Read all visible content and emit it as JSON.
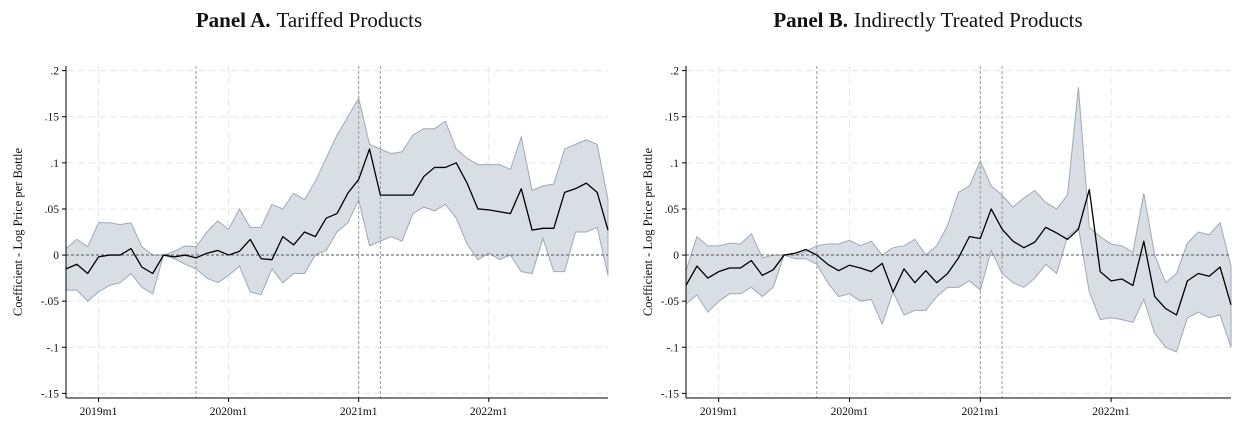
{
  "colors": {
    "band_fill": "#d9dde4",
    "band_edge": "#9eaab8",
    "line": "#000000",
    "grid": "#e8e8e8",
    "zero": "#555555",
    "vline": "#9a9a9a"
  },
  "chart_data": [
    {
      "type": "line",
      "panel_label": "Panel A.",
      "title": "Tariffed Products",
      "ylabel": "Coefficient - Log Price per Bottle",
      "xlabel": "",
      "y_ticks": [
        0.2,
        0.15,
        0.1,
        0.05,
        0,
        -0.05,
        -0.1,
        -0.15
      ],
      "y_tick_labels": [
        ".2",
        ".15",
        ".1",
        ".05",
        "0",
        "-.05",
        "-.1",
        "-.15"
      ],
      "ylim": [
        -0.155,
        0.205
      ],
      "x_ticks": [
        "2019-01",
        "2020-01",
        "2021-01",
        "2022-01"
      ],
      "x_tick_labels": [
        "2019m1",
        "2020m1",
        "2021m1",
        "2022m1"
      ],
      "xlim": [
        "2018-10",
        "2022-12"
      ],
      "reference_lines": [
        "2019-10",
        "2021-01",
        "2021-03"
      ],
      "grid": true,
      "series": [
        {
          "type": "confidence-band",
          "x": [
            "2018-10",
            "2018-11",
            "2018-12",
            "2019-01",
            "2019-02",
            "2019-03",
            "2019-04",
            "2019-05",
            "2019-06",
            "2019-07",
            "2019-08",
            "2019-09",
            "2019-10",
            "2019-11",
            "2019-12",
            "2020-01",
            "2020-02",
            "2020-03",
            "2020-04",
            "2020-05",
            "2020-06",
            "2020-07",
            "2020-08",
            "2020-09",
            "2020-10",
            "2020-11",
            "2020-12",
            "2021-01",
            "2021-02",
            "2021-03",
            "2021-04",
            "2021-05",
            "2021-06",
            "2021-07",
            "2021-08",
            "2021-09",
            "2021-10",
            "2021-11",
            "2021-12",
            "2022-01",
            "2022-02",
            "2022-03",
            "2022-04",
            "2022-05",
            "2022-06",
            "2022-07",
            "2022-08",
            "2022-09",
            "2022-10",
            "2022-11",
            "2022-12"
          ],
          "lower": [
            -0.038,
            -0.038,
            -0.05,
            -0.04,
            -0.033,
            -0.03,
            -0.02,
            -0.035,
            -0.042,
            0.0,
            -0.004,
            -0.01,
            -0.015,
            -0.025,
            -0.03,
            -0.022,
            -0.012,
            -0.04,
            -0.043,
            -0.015,
            -0.03,
            -0.02,
            -0.02,
            0.0,
            0.005,
            0.025,
            0.035,
            0.06,
            0.01,
            0.015,
            0.02,
            0.015,
            0.045,
            0.052,
            0.048,
            0.055,
            0.04,
            0.012,
            -0.005,
            0.002,
            -0.005,
            0.0,
            -0.018,
            -0.02,
            0.018,
            -0.018,
            -0.018,
            0.025,
            0.025,
            0.03,
            -0.022
          ],
          "upper": [
            0.007,
            0.017,
            0.009,
            0.035,
            0.035,
            0.033,
            0.035,
            0.009,
            0.0,
            0.0,
            0.004,
            0.01,
            0.009,
            0.025,
            0.037,
            0.028,
            0.05,
            0.03,
            0.03,
            0.055,
            0.05,
            0.067,
            0.06,
            0.08,
            0.105,
            0.13,
            0.15,
            0.17,
            0.12,
            0.115,
            0.11,
            0.112,
            0.13,
            0.137,
            0.137,
            0.145,
            0.115,
            0.105,
            0.098,
            0.098,
            0.098,
            0.093,
            0.128,
            0.07,
            0.075,
            0.077,
            0.115,
            0.12,
            0.125,
            0.12,
            0.06
          ]
        },
        {
          "type": "line",
          "x": [
            "2018-10",
            "2018-11",
            "2018-12",
            "2019-01",
            "2019-02",
            "2019-03",
            "2019-04",
            "2019-05",
            "2019-06",
            "2019-07",
            "2019-08",
            "2019-09",
            "2019-10",
            "2019-11",
            "2019-12",
            "2020-01",
            "2020-02",
            "2020-03",
            "2020-04",
            "2020-05",
            "2020-06",
            "2020-07",
            "2020-08",
            "2020-09",
            "2020-10",
            "2020-11",
            "2020-12",
            "2021-01",
            "2021-02",
            "2021-03",
            "2021-04",
            "2021-05",
            "2021-06",
            "2021-07",
            "2021-08",
            "2021-09",
            "2021-10",
            "2021-11",
            "2021-12",
            "2022-01",
            "2022-02",
            "2022-03",
            "2022-04",
            "2022-05",
            "2022-06",
            "2022-07",
            "2022-08",
            "2022-09",
            "2022-10",
            "2022-11",
            "2022-12"
          ],
          "values": [
            -0.015,
            -0.01,
            -0.02,
            -0.002,
            0.0,
            0.0,
            0.007,
            -0.013,
            -0.02,
            0.0,
            -0.002,
            0.0,
            -0.003,
            0.002,
            0.005,
            0.0,
            0.004,
            0.017,
            -0.004,
            -0.005,
            0.02,
            0.011,
            0.025,
            0.02,
            0.04,
            0.045,
            0.067,
            0.082,
            0.115,
            0.065,
            0.065,
            0.065,
            0.065,
            0.085,
            0.095,
            0.095,
            0.1,
            0.078,
            0.05,
            0.049,
            0.047,
            0.045,
            0.072,
            0.027,
            0.029,
            0.029,
            0.068,
            0.072,
            0.078,
            0.068,
            0.027
          ]
        }
      ]
    },
    {
      "type": "line",
      "panel_label": "Panel B.",
      "title": "Indirectly Treated Products",
      "ylabel": "Coefficient - Log Price per Bottle",
      "xlabel": "",
      "y_ticks": [
        0.2,
        0.15,
        0.1,
        0.05,
        0,
        -0.05,
        -0.1,
        -0.15
      ],
      "y_tick_labels": [
        ".2",
        ".15",
        ".1",
        ".05",
        "0",
        "-.05",
        "-.1",
        "-.15"
      ],
      "ylim": [
        -0.155,
        0.205
      ],
      "x_ticks": [
        "2019-01",
        "2020-01",
        "2021-01",
        "2022-01"
      ],
      "x_tick_labels": [
        "2019m1",
        "2020m1",
        "2021m1",
        "2022m1"
      ],
      "xlim": [
        "2018-10",
        "2022-12"
      ],
      "reference_lines": [
        "2019-10",
        "2021-01",
        "2021-03"
      ],
      "grid": true,
      "series": [
        {
          "type": "confidence-band",
          "x": [
            "2018-10",
            "2018-11",
            "2018-12",
            "2019-01",
            "2019-02",
            "2019-03",
            "2019-04",
            "2019-05",
            "2019-06",
            "2019-07",
            "2019-08",
            "2019-09",
            "2019-10",
            "2019-11",
            "2019-12",
            "2020-01",
            "2020-02",
            "2020-03",
            "2020-04",
            "2020-05",
            "2020-06",
            "2020-07",
            "2020-08",
            "2020-09",
            "2020-10",
            "2020-11",
            "2020-12",
            "2021-01",
            "2021-02",
            "2021-03",
            "2021-04",
            "2021-05",
            "2021-06",
            "2021-07",
            "2021-08",
            "2021-09",
            "2021-10",
            "2021-11",
            "2021-12",
            "2022-01",
            "2022-02",
            "2022-03",
            "2022-04",
            "2022-05",
            "2022-06",
            "2022-07",
            "2022-08",
            "2022-09",
            "2022-10",
            "2022-11",
            "2022-12"
          ],
          "lower": [
            -0.053,
            -0.043,
            -0.062,
            -0.05,
            -0.042,
            -0.042,
            -0.035,
            -0.045,
            -0.035,
            0.0,
            -0.004,
            -0.004,
            -0.01,
            -0.03,
            -0.045,
            -0.042,
            -0.05,
            -0.048,
            -0.075,
            -0.04,
            -0.065,
            -0.06,
            -0.06,
            -0.045,
            -0.035,
            -0.035,
            -0.028,
            -0.038,
            0.005,
            -0.02,
            -0.03,
            -0.035,
            -0.025,
            -0.01,
            -0.02,
            0.02,
            0.03,
            -0.04,
            -0.07,
            -0.068,
            -0.07,
            -0.073,
            -0.048,
            -0.085,
            -0.1,
            -0.105,
            -0.068,
            -0.062,
            -0.068,
            -0.065,
            -0.1
          ],
          "upper": [
            -0.017,
            0.02,
            0.01,
            0.01,
            0.013,
            0.012,
            0.023,
            -0.003,
            0.0,
            0.0,
            0.0,
            0.004,
            0.01,
            0.012,
            0.012,
            0.016,
            0.01,
            0.015,
            0.0,
            0.008,
            0.01,
            0.017,
            0.0,
            0.01,
            0.032,
            0.068,
            0.075,
            0.102,
            0.075,
            0.065,
            0.052,
            0.062,
            0.07,
            0.057,
            0.05,
            0.065,
            0.182,
            0.03,
            0.02,
            0.012,
            0.01,
            0.003,
            0.067,
            0.0,
            -0.03,
            -0.02,
            0.013,
            0.025,
            0.022,
            0.035,
            -0.012
          ]
        },
        {
          "type": "line",
          "x": [
            "2018-10",
            "2018-11",
            "2018-12",
            "2019-01",
            "2019-02",
            "2019-03",
            "2019-04",
            "2019-05",
            "2019-06",
            "2019-07",
            "2019-08",
            "2019-09",
            "2019-10",
            "2019-11",
            "2019-12",
            "2020-01",
            "2020-02",
            "2020-03",
            "2020-04",
            "2020-05",
            "2020-06",
            "2020-07",
            "2020-08",
            "2020-09",
            "2020-10",
            "2020-11",
            "2020-12",
            "2021-01",
            "2021-02",
            "2021-03",
            "2021-04",
            "2021-05",
            "2021-06",
            "2021-07",
            "2021-08",
            "2021-09",
            "2021-10",
            "2021-11",
            "2021-12",
            "2022-01",
            "2022-02",
            "2022-03",
            "2022-04",
            "2022-05",
            "2022-06",
            "2022-07",
            "2022-08",
            "2022-09",
            "2022-10",
            "2022-11",
            "2022-12"
          ],
          "values": [
            -0.033,
            -0.012,
            -0.025,
            -0.018,
            -0.014,
            -0.014,
            -0.006,
            -0.022,
            -0.016,
            0.0,
            0.002,
            0.006,
            0.0,
            -0.01,
            -0.017,
            -0.011,
            -0.014,
            -0.018,
            -0.009,
            -0.04,
            -0.015,
            -0.03,
            -0.017,
            -0.03,
            -0.02,
            -0.003,
            0.02,
            0.018,
            0.05,
            0.028,
            0.015,
            0.008,
            0.014,
            0.03,
            0.024,
            0.017,
            0.028,
            0.071,
            -0.018,
            -0.028,
            -0.026,
            -0.033,
            0.015,
            -0.045,
            -0.058,
            -0.065,
            -0.028,
            -0.02,
            -0.023,
            -0.013,
            -0.054
          ]
        }
      ]
    }
  ]
}
